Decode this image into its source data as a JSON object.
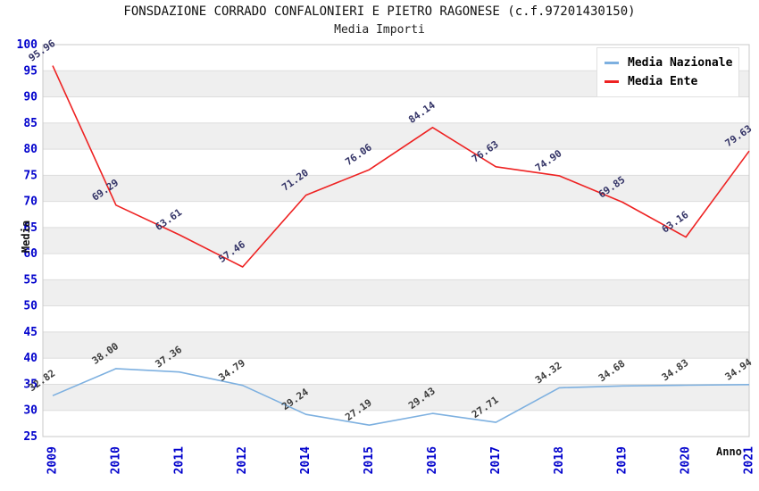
{
  "header": {
    "title": "FONSDAZIONE CORRADO CONFALONIERI E PIETRO RAGONESE (c.f.97201430150)",
    "subtitle": "Media Importi"
  },
  "legend": {
    "items": [
      {
        "label": "Media Nazionale",
        "color": "#7db0e0"
      },
      {
        "label": "Media Ente",
        "color": "#ee2222"
      }
    ]
  },
  "axes": {
    "y_label": "Media",
    "x_label": "Anno"
  },
  "chart_data": {
    "type": "line",
    "title": "FONSDAZIONE CORRADO CONFALONIERI E PIETRO RAGONESE (c.f.97201430150)",
    "subtitle": "Media Importi",
    "categories": [
      "2009",
      "2010",
      "2011",
      "2012",
      "2014",
      "2015",
      "2016",
      "2017",
      "2018",
      "2019",
      "2020",
      "2021"
    ],
    "series": [
      {
        "name": "Media Nazionale",
        "color": "#7db0e0",
        "label_color": "#3d3d3d",
        "values": [
          32.82,
          38.0,
          37.36,
          34.79,
          29.24,
          27.19,
          29.43,
          27.71,
          34.32,
          34.68,
          34.83,
          34.94
        ]
      },
      {
        "name": "Media Ente",
        "color": "#ee2222",
        "label_color": "#333366",
        "values": [
          95.96,
          69.29,
          63.61,
          57.46,
          71.2,
          76.06,
          84.14,
          76.63,
          74.9,
          69.85,
          63.16,
          79.63
        ]
      }
    ],
    "xlabel": "Anno",
    "ylabel": "Media",
    "ylim": [
      25,
      100
    ],
    "ytick_step": 5,
    "grid": true,
    "legend_position": "top-right",
    "point_labels": true,
    "point_label_decimals": 2,
    "styles": {
      "tick_color": "#0000cc",
      "band_color": "#efefef",
      "grid_color": "#dddddd",
      "border_color": "#c8c8c8"
    }
  }
}
